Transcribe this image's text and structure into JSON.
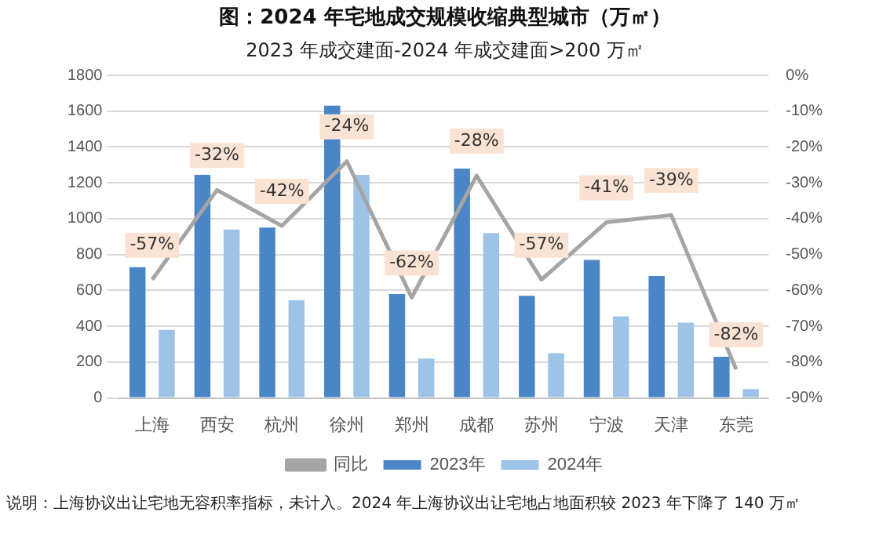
{
  "chart_data": {
    "type": "bar",
    "title": "图：2024 年宅地成交规模收缩典型城市（万㎡）",
    "subtitle": "2023 年成交建面-2024 年成交建面>200 万㎡",
    "categories": [
      "上海",
      "西安",
      "杭州",
      "徐州",
      "郑州",
      "成都",
      "苏州",
      "宁波",
      "天津",
      "东莞"
    ],
    "series": [
      {
        "name": "2023年",
        "color": "#4a86c5",
        "values": [
          730,
          1245,
          950,
          1630,
          580,
          1280,
          570,
          770,
          680,
          230
        ]
      },
      {
        "name": "2024年",
        "color": "#9dc3e6",
        "values": [
          380,
          940,
          545,
          1245,
          220,
          920,
          250,
          455,
          420,
          50
        ]
      },
      {
        "name": "同比",
        "type": "line",
        "axis": "y2",
        "color": "#a5a5a5",
        "marker": "none",
        "values": [
          -57,
          -32,
          -42,
          -24,
          -62,
          -28,
          -57,
          -41,
          -39,
          -82
        ],
        "value_labels": [
          "-57%",
          "-32%",
          "-42%",
          "-24%",
          "-62%",
          "-28%",
          "-57%",
          "-41%",
          "-39%",
          "-82%"
        ]
      }
    ],
    "ylim": [
      0,
      1800
    ],
    "yticks": [
      0,
      200,
      400,
      600,
      800,
      1000,
      1200,
      1400,
      1600,
      1800
    ],
    "y2lim": [
      -90,
      0
    ],
    "y2ticks": [
      {
        "value": -90,
        "label": "-90%"
      },
      {
        "value": -80,
        "label": "-80%"
      },
      {
        "value": -70,
        "label": "-70%"
      },
      {
        "value": -60,
        "label": "-60%"
      },
      {
        "value": -50,
        "label": "-50%"
      },
      {
        "value": -40,
        "label": "-40%"
      },
      {
        "value": -30,
        "label": "-30%"
      },
      {
        "value": -20,
        "label": "-20%"
      },
      {
        "value": -10,
        "label": "-10%"
      },
      {
        "value": 0,
        "label": "0%"
      }
    ],
    "grid": "y",
    "legend": "bottom",
    "annotations": [
      "说明：上海协议出让宅地无容积率指标，未计入。2024 年上海协议出让宅地占地面积较 2023 年下降了 140 万㎡"
    ]
  }
}
